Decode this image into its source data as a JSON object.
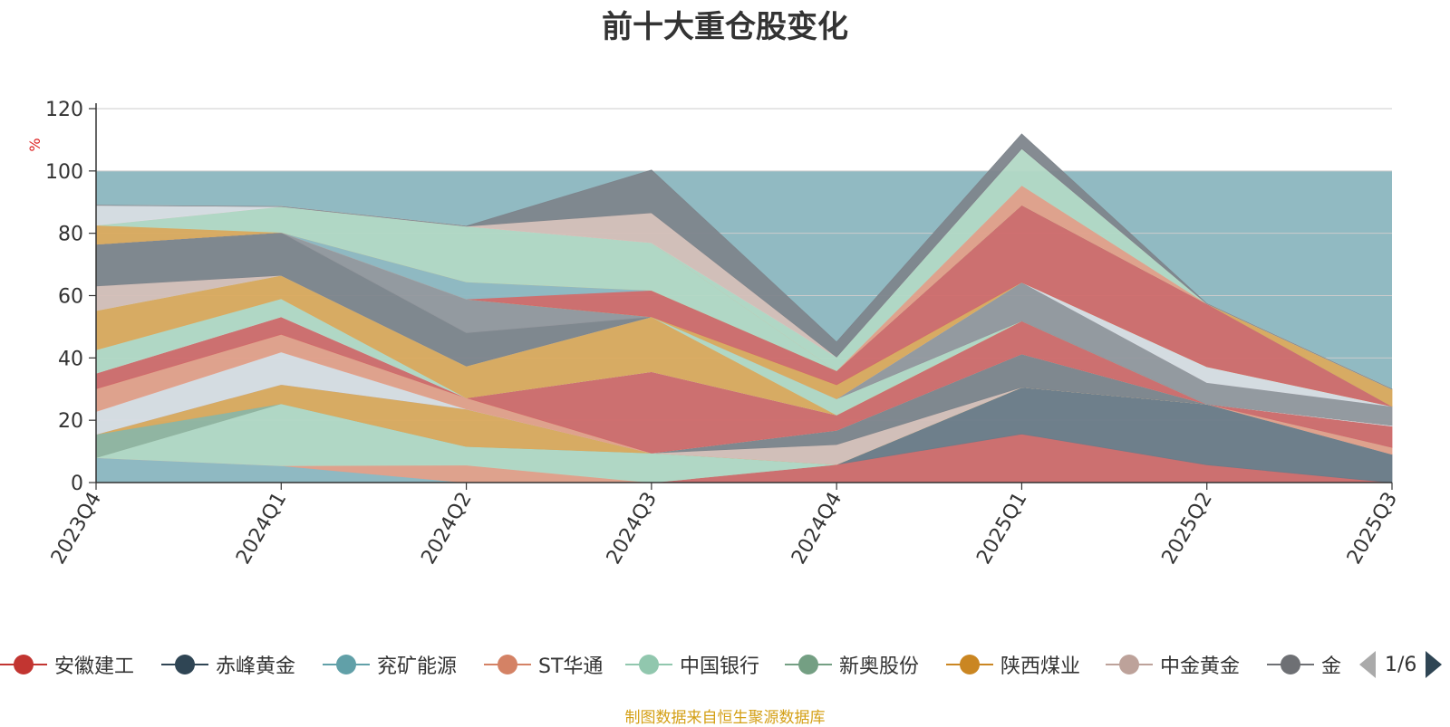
{
  "colors": {
    "background_band": "#91bac2",
    "axis": "#333333",
    "grid": "#cccccc",
    "ylabel": "#dd2222"
  },
  "chart_data": {
    "type": "area",
    "title": "前十大重仓股变化",
    "ylabel": "%",
    "ylim": [
      0,
      120
    ],
    "yticks": [
      0,
      20,
      40,
      60,
      80,
      100,
      120
    ],
    "grid": true,
    "legend_position": "bottom",
    "categories": [
      "2023Q4",
      "2024Q1",
      "2024Q2",
      "2024Q3",
      "2024Q4",
      "2025Q1",
      "2025Q2",
      "2025Q3"
    ],
    "band_100": 100,
    "series": [
      {
        "name": "安徽建工",
        "color": "#d06b6b",
        "legend_color": "#c23531",
        "values": [
          0,
          0,
          0,
          0,
          5.8,
          15.6,
          5.7,
          0
        ]
      },
      {
        "name": "赤峰黄金",
        "color": "#6d7b88",
        "legend_color": "#2f4554",
        "values": [
          0,
          0,
          0,
          0,
          0,
          15.0,
          19.5,
          9.1
        ]
      },
      {
        "name": "兖矿能源",
        "color": "#8fb8c2",
        "legend_color": "#61a0a8",
        "values": [
          8.0,
          5.4,
          0,
          0,
          0,
          0,
          0,
          0
        ]
      },
      {
        "name": "ST华通",
        "color": "#e3a08a",
        "legend_color": "#d48265",
        "values": [
          0,
          0,
          5.6,
          0,
          0,
          0,
          0,
          2.2
        ]
      },
      {
        "name": "中国银行",
        "color": "#b2d8c5",
        "legend_color": "#91c7ae",
        "values": [
          0,
          19.9,
          6.0,
          9.5,
          0,
          0,
          0,
          0
        ]
      },
      {
        "name": "新奥股份",
        "color": "#90b4a0",
        "legend_color": "#749f83",
        "values": [
          7.5,
          0,
          0,
          0,
          0,
          0,
          0,
          0
        ]
      },
      {
        "name": "陕西煤业",
        "color": "#dbaa5e",
        "legend_color": "#ca8622",
        "values": [
          0,
          6.2,
          12.0,
          0,
          0,
          0,
          0,
          0
        ]
      },
      {
        "name": "中金黄金",
        "color": "#d5bfb8",
        "legend_color": "#bda29a",
        "values": [
          0,
          0,
          0,
          0,
          6.4,
          0,
          0,
          0
        ]
      },
      {
        "name": "金",
        "color": "#7e858c",
        "legend_color": "#6e7074",
        "values": [
          0,
          0,
          0,
          0,
          4.6,
          10.7,
          0,
          0
        ]
      },
      {
        "name": "",
        "color": "#d8dde3",
        "values": [
          7.3,
          10.4,
          0,
          0,
          0,
          0,
          0,
          0
        ]
      },
      {
        "name": "",
        "color": "#e3a08a",
        "values": [
          7.3,
          5.7,
          3.6,
          0,
          0,
          0,
          0,
          0
        ]
      },
      {
        "name": "",
        "color": "#d06b6b",
        "values": [
          5.0,
          5.6,
          0,
          26.1,
          4.9,
          10.6,
          0,
          6.8
        ]
      },
      {
        "name": "",
        "color": "#d8dde3",
        "values": [
          0,
          0,
          0,
          0,
          0,
          0,
          0,
          0.3
        ]
      },
      {
        "name": "",
        "color": "#b2d8c5",
        "values": [
          7.5,
          5.8,
          0,
          0,
          0,
          0,
          0,
          0
        ]
      },
      {
        "name": "",
        "color": "#dbaa5e",
        "values": [
          12.6,
          7.5,
          10.2,
          17.6,
          0,
          0,
          0,
          0
        ]
      },
      {
        "name": "",
        "color": "#b2d8c5",
        "values": [
          0,
          0,
          0,
          0,
          5.2,
          0,
          0,
          0
        ]
      },
      {
        "name": "",
        "color": "#d5bfb8",
        "values": [
          7.9,
          0,
          0,
          0,
          0,
          0,
          0,
          0
        ]
      },
      {
        "name": "",
        "color": "#7e858c",
        "values": [
          13.4,
          13.8,
          10.7,
          0,
          0,
          0,
          0,
          0
        ]
      },
      {
        "name": "",
        "color": "#93989e",
        "values": [
          0,
          0,
          10.8,
          0,
          0,
          12.4,
          6.9,
          6.1
        ]
      },
      {
        "name": "",
        "color": "#d8dde3",
        "values": [
          0,
          0,
          0,
          0,
          0,
          0,
          5.1,
          0
        ]
      },
      {
        "name": "",
        "color": "#dbaa5e",
        "values": [
          0,
          0,
          0,
          0,
          4.5,
          0,
          0,
          0
        ]
      },
      {
        "name": "",
        "color": "#d06b6b",
        "values": [
          0,
          0,
          0,
          8.5,
          4.5,
          24.8,
          20.2,
          0
        ]
      },
      {
        "name": "",
        "color": "#8fb8c2",
        "values": [
          0,
          0,
          5.5,
          0,
          0,
          0,
          0,
          0
        ]
      },
      {
        "name": "",
        "color": "#dbaa5e",
        "values": [
          6.1,
          0,
          0,
          0,
          0,
          0,
          0,
          5.5
        ]
      },
      {
        "name": "",
        "color": "#b2d8c5",
        "values": [
          0,
          8.3,
          17.9,
          15.3,
          0,
          0,
          0,
          0
        ]
      },
      {
        "name": "",
        "color": "#e3a08a",
        "values": [
          0,
          0,
          0,
          0,
          0,
          6.3,
          0,
          0
        ]
      },
      {
        "name": "",
        "color": "#b2d8c5",
        "values": [
          0,
          0,
          0,
          0,
          4.4,
          11.8,
          0,
          0
        ]
      },
      {
        "name": "",
        "color": "#d8dde3",
        "values": [
          6.4,
          0,
          0,
          0,
          0,
          0,
          0,
          0
        ]
      },
      {
        "name": "",
        "color": "#d5bfb8",
        "values": [
          0,
          0,
          0,
          9.6,
          0,
          0,
          0,
          0
        ]
      },
      {
        "name": "",
        "color": "#7e858c",
        "values": [
          0,
          0,
          0,
          13.7,
          4.8,
          4.7,
          0,
          0
        ]
      }
    ]
  },
  "legend": {
    "items": [
      {
        "label": "安徽建工"
      },
      {
        "label": "赤峰黄金"
      },
      {
        "label": "兖矿能源"
      },
      {
        "label": "ST华通"
      },
      {
        "label": "中国银行"
      },
      {
        "label": "新奥股份"
      },
      {
        "label": "陕西煤业"
      },
      {
        "label": "中金黄金"
      },
      {
        "label": "金"
      }
    ],
    "page_text": "1/6"
  },
  "source_note": "制图数据来自恒生聚源数据库"
}
